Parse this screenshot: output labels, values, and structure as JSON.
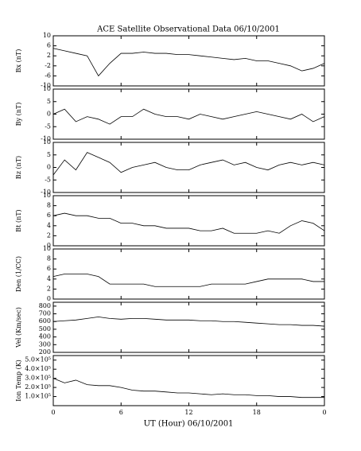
{
  "chart_data": [
    {
      "type": "line",
      "title": "ACE Satellite Observational Data   06/10/2001",
      "ylabel": "Bx (nT)",
      "xlim": [
        0,
        24
      ],
      "x": [
        0,
        1,
        2,
        3,
        4,
        5,
        6,
        7,
        8,
        9,
        10,
        11,
        12,
        13,
        14,
        15,
        16,
        17,
        18,
        19,
        20,
        21,
        22,
        23,
        24
      ],
      "values": [
        5,
        4,
        3,
        2,
        -6,
        -1,
        3,
        3,
        3.5,
        3,
        3,
        2.5,
        2.5,
        2,
        1.5,
        1,
        0.5,
        1,
        0,
        0,
        -1,
        -2,
        -4,
        -3,
        -1
      ],
      "ylim": [
        -10,
        10
      ],
      "yticks": [
        -10,
        -6,
        -2,
        2,
        6,
        10
      ],
      "color": "#000000"
    },
    {
      "type": "line",
      "ylabel": "By (nT)",
      "xlim": [
        0,
        24
      ],
      "x": [
        0,
        1,
        2,
        3,
        4,
        5,
        6,
        7,
        8,
        9,
        10,
        11,
        12,
        13,
        14,
        15,
        16,
        17,
        18,
        19,
        20,
        21,
        22,
        23,
        24
      ],
      "values": [
        0,
        2,
        -3,
        -1,
        -2,
        -4,
        -1,
        -1,
        2,
        0,
        -1,
        -1,
        -2,
        0,
        -1,
        -2,
        -1,
        0,
        1,
        0,
        -1,
        -2,
        0,
        -3,
        -1
      ],
      "ylim": [
        -10,
        10
      ],
      "yticks": [
        -10,
        -5,
        0,
        5,
        10
      ],
      "color": "#000000"
    },
    {
      "type": "line",
      "ylabel": "Bz (nT)",
      "xlim": [
        0,
        24
      ],
      "x": [
        0,
        1,
        2,
        3,
        4,
        5,
        6,
        7,
        8,
        9,
        10,
        11,
        12,
        13,
        14,
        15,
        16,
        17,
        18,
        19,
        20,
        21,
        22,
        23,
        24
      ],
      "values": [
        -3,
        3,
        -1,
        6,
        4,
        2,
        -2,
        0,
        1,
        2,
        0,
        -1,
        -1,
        1,
        2,
        3,
        1,
        2,
        0,
        -1,
        1,
        2,
        1,
        2,
        1
      ],
      "ylim": [
        -10,
        10
      ],
      "yticks": [
        -10,
        -5,
        0,
        5,
        10
      ],
      "color": "#000000"
    },
    {
      "type": "line",
      "ylabel": "Bt (nT)",
      "xlim": [
        0,
        24
      ],
      "x": [
        0,
        1,
        2,
        3,
        4,
        5,
        6,
        7,
        8,
        9,
        10,
        11,
        12,
        13,
        14,
        15,
        16,
        17,
        18,
        19,
        20,
        21,
        22,
        23,
        24
      ],
      "values": [
        6,
        6.5,
        6,
        6,
        5.5,
        5.5,
        4.5,
        4.5,
        4,
        4,
        3.5,
        3.5,
        3.5,
        3,
        3,
        3.5,
        2.5,
        2.5,
        2.5,
        3,
        2.5,
        4,
        5,
        4.5,
        3
      ],
      "ylim": [
        0,
        10
      ],
      "yticks": [
        0,
        2,
        4,
        6,
        8,
        10
      ],
      "color": "#000000"
    },
    {
      "type": "line",
      "ylabel": "Den (1/CC)",
      "xlim": [
        0,
        24
      ],
      "x": [
        0,
        1,
        2,
        3,
        4,
        5,
        6,
        7,
        8,
        9,
        10,
        11,
        12,
        13,
        14,
        15,
        16,
        17,
        18,
        19,
        20,
        21,
        22,
        23,
        24
      ],
      "values": [
        4.5,
        5,
        5,
        5,
        4.5,
        3,
        3,
        3,
        3,
        2.5,
        2.5,
        2.5,
        2.5,
        2.5,
        3,
        3,
        3,
        3,
        3.5,
        4,
        4,
        4,
        4,
        3.5,
        3.5
      ],
      "ylim": [
        0,
        10
      ],
      "yticks": [
        0,
        2,
        4,
        6,
        8,
        10
      ],
      "color": "#000000"
    },
    {
      "type": "line",
      "ylabel": "Vel (Km/sec)",
      "xlim": [
        0,
        24
      ],
      "x": [
        0,
        1,
        2,
        3,
        4,
        5,
        6,
        7,
        8,
        9,
        10,
        11,
        12,
        13,
        14,
        15,
        16,
        17,
        18,
        19,
        20,
        21,
        22,
        23,
        24
      ],
      "values": [
        600,
        610,
        620,
        640,
        660,
        640,
        630,
        640,
        640,
        630,
        620,
        620,
        620,
        610,
        610,
        600,
        600,
        590,
        580,
        570,
        560,
        560,
        550,
        550,
        540
      ],
      "ylim": [
        200,
        850
      ],
      "yticks": [
        200,
        300,
        400,
        500,
        600,
        700,
        800
      ],
      "color": "#000000"
    },
    {
      "type": "line",
      "ylabel": "Ion Temp (K)",
      "xlabel": "UT (Hour)  06/10/2001",
      "xlim": [
        0,
        24
      ],
      "xticks": [
        0,
        6,
        12,
        18,
        {
          "value": 24,
          "label": "0"
        }
      ],
      "x": [
        0,
        1,
        2,
        3,
        4,
        5,
        6,
        7,
        8,
        9,
        10,
        11,
        12,
        13,
        14,
        15,
        16,
        17,
        18,
        19,
        20,
        21,
        22,
        23,
        24
      ],
      "values": [
        300000,
        250000,
        280000,
        230000,
        220000,
        220000,
        200000,
        170000,
        160000,
        160000,
        150000,
        140000,
        140000,
        130000,
        120000,
        130000,
        120000,
        120000,
        110000,
        110000,
        100000,
        100000,
        90000,
        90000,
        90000
      ],
      "ylim": [
        0,
        550000
      ],
      "yticks": [
        {
          "value": 100000,
          "label": "1.0×10⁵"
        },
        {
          "value": 200000,
          "label": "2.0×10⁵"
        },
        {
          "value": 300000,
          "label": "3.0×10⁵"
        },
        {
          "value": 400000,
          "label": "4.0×10⁵"
        },
        {
          "value": 500000,
          "label": "5.0×10⁵"
        }
      ],
      "color": "#000000"
    }
  ]
}
